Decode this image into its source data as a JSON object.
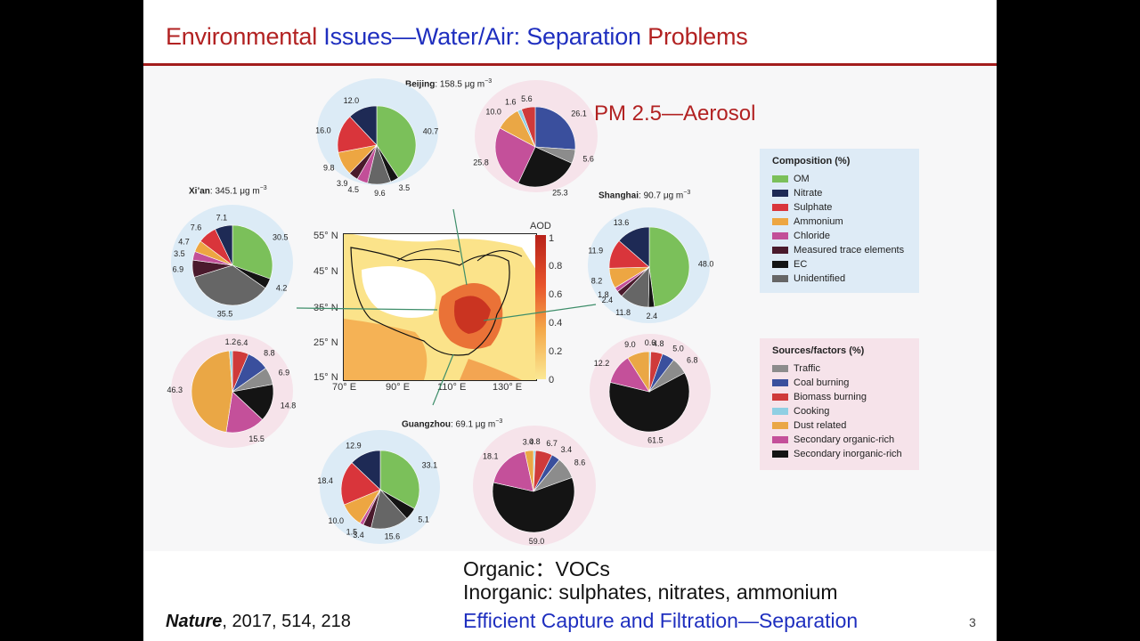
{
  "title": {
    "part1": "Environmental ",
    "part2": "Issues—Water/Air: ",
    "part3": "Separation ",
    "part4": "Problems"
  },
  "pm_label": "PM 2.5—Aerosol",
  "colors": {
    "om": "#7bc05a",
    "nitrate": "#1e2a55",
    "sulphate": "#d9353b",
    "ammonium": "#eda642",
    "chloride": "#c24f98",
    "trace": "#4a1a2c",
    "ec": "#141414",
    "unidentified": "#666666",
    "traffic": "#8c8c8c",
    "coal": "#3a4f9d",
    "biomass": "#cf3a3a",
    "cooking": "#8fcfe3",
    "dust": "#eaa745",
    "sec_organic": "#c4509a",
    "sec_inorganic": "#141414"
  },
  "cities": {
    "beijing": {
      "name": "Beijing",
      "conc": ": 158.5 μg m",
      "sup": "−3"
    },
    "xian": {
      "name": "Xi’an",
      "conc": ": 345.1 μg m",
      "sup": "−3"
    },
    "shanghai": {
      "name": "Shanghai",
      "conc": ": 90.7 μg m",
      "sup": "−3"
    },
    "guangzhou": {
      "name": "Guangzhou",
      "conc": ": 69.1 μg m",
      "sup": "−3"
    }
  },
  "pies": {
    "beijing_comp": {
      "values": [
        40.7,
        3.5,
        9.6,
        4.5,
        3.9,
        9.8,
        16.0,
        12.0
      ],
      "keys": [
        "om",
        "ec",
        "unidentified",
        "chloride",
        "trace",
        "ammonium",
        "sulphate",
        "nitrate"
      ],
      "labels": [
        "40.7",
        "3.5",
        "9.6",
        "4.5",
        "3.9",
        "9.8",
        "16.0",
        "12.0"
      ]
    },
    "beijing_src": {
      "values": [
        26.1,
        5.6,
        25.3,
        25.8,
        10.0,
        1.6,
        5.6
      ],
      "keys": [
        "coal",
        "traffic",
        "sec_inorganic",
        "sec_organic",
        "dust",
        "cooking",
        "biomass"
      ],
      "labels": [
        "26.1",
        "5.6",
        "25.3",
        "25.8",
        "10.0",
        "1.6",
        "5.6"
      ]
    },
    "xian_comp": {
      "values": [
        30.5,
        4.2,
        35.5,
        6.9,
        3.5,
        4.7,
        7.6,
        7.1
      ],
      "keys": [
        "om",
        "ec",
        "unidentified",
        "trace",
        "chloride",
        "ammonium",
        "sulphate",
        "nitrate"
      ],
      "labels": [
        "30.5",
        "4.2",
        "35.5",
        "6.9",
        "3.5",
        "4.7",
        "7.6",
        "7.1"
      ]
    },
    "xian_src": {
      "values": [
        6.4,
        8.8,
        6.9,
        14.8,
        15.5,
        46.3,
        1.2
      ],
      "keys": [
        "biomass",
        "coal",
        "traffic",
        "sec_inorganic",
        "sec_organic",
        "dust",
        "cooking"
      ],
      "labels": [
        "6.4",
        "8.8",
        "6.9",
        "14.8",
        "15.5",
        "46.3",
        "1.2"
      ]
    },
    "shanghai_comp": {
      "values": [
        48.0,
        2.4,
        11.8,
        2.4,
        1.8,
        8.2,
        11.9,
        13.6
      ],
      "keys": [
        "om",
        "ec",
        "unidentified",
        "trace",
        "chloride",
        "ammonium",
        "sulphate",
        "nitrate"
      ],
      "labels": [
        "48.0",
        "2.4",
        "11.8",
        "2.4",
        "1.8",
        "8.2",
        "11.9",
        "13.6"
      ]
    },
    "shanghai_src": {
      "values": [
        0.6,
        4.8,
        5.0,
        6.8,
        61.5,
        12.2,
        9.0
      ],
      "keys": [
        "cooking",
        "biomass",
        "coal",
        "traffic",
        "sec_inorganic",
        "sec_organic",
        "dust"
      ],
      "labels": [
        "0.6",
        "4.8",
        "5.0",
        "6.8",
        "61.5",
        "12.2",
        "9.0"
      ]
    },
    "guangzhou_comp": {
      "values": [
        33.1,
        5.1,
        15.6,
        3.4,
        1.5,
        10.0,
        18.4,
        12.9
      ],
      "keys": [
        "om",
        "ec",
        "unidentified",
        "trace",
        "chloride",
        "ammonium",
        "sulphate",
        "nitrate"
      ],
      "labels": [
        "33.1",
        "5.1",
        "15.6",
        "3.4",
        "1.5",
        "10.0",
        "18.4",
        "12.9"
      ]
    },
    "guangzhou_src": {
      "values": [
        0.8,
        6.7,
        3.4,
        8.6,
        59.0,
        18.1,
        3.4
      ],
      "keys": [
        "cooking",
        "biomass",
        "coal",
        "traffic",
        "sec_inorganic",
        "sec_organic",
        "dust"
      ],
      "labels": [
        "0.8",
        "6.7",
        "3.4",
        "8.6",
        "59.0",
        "18.1",
        "3.4"
      ]
    }
  },
  "legend_comp": {
    "title": "Composition (%)",
    "items": [
      {
        "label": "OM",
        "key": "om"
      },
      {
        "label": "Nitrate",
        "key": "nitrate"
      },
      {
        "label": "Sulphate",
        "key": "sulphate"
      },
      {
        "label": "Ammonium",
        "key": "ammonium"
      },
      {
        "label": "Chloride",
        "key": "chloride"
      },
      {
        "label": "Measured trace elements",
        "key": "trace"
      },
      {
        "label": "EC",
        "key": "ec"
      },
      {
        "label": "Unidentified",
        "key": "unidentified"
      }
    ]
  },
  "legend_src": {
    "title": "Sources/factors (%)",
    "items": [
      {
        "label": "Traffic",
        "key": "traffic"
      },
      {
        "label": "Coal burning",
        "key": "coal"
      },
      {
        "label": "Biomass burning",
        "key": "biomass"
      },
      {
        "label": "Cooking",
        "key": "cooking"
      },
      {
        "label": "Dust related",
        "key": "dust"
      },
      {
        "label": "Secondary organic-rich",
        "key": "sec_organic"
      },
      {
        "label": "Secondary inorganic-rich",
        "key": "sec_inorganic"
      }
    ]
  },
  "map": {
    "colorbar_title": "AOD",
    "colorbar_ticks": [
      "1",
      "0.8",
      "0.6",
      "0.4",
      "0.2",
      "0"
    ],
    "lat_ticks": [
      "55° N",
      "45° N",
      "35° N",
      "25° N",
      "15° N"
    ],
    "lon_ticks": [
      "70° E",
      "90° E",
      "110° E",
      "130° E"
    ]
  },
  "bottom": {
    "line1": "Organic：VOCs",
    "line2": "Inorganic: sulphates, nitrates, ammonium",
    "line3": "Efficient Capture and Filtration—Separation"
  },
  "citation": {
    "journal": "Nature",
    "rest": ", 2017, 514, 218"
  },
  "page_number": "3"
}
